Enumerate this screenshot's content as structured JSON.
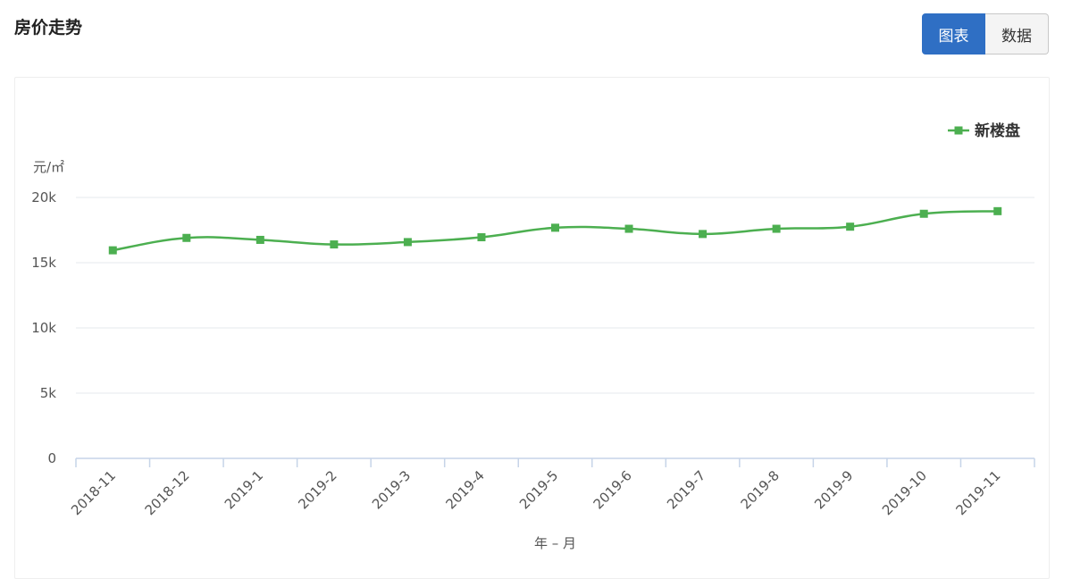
{
  "header": {
    "title": "房价走势",
    "toggle": {
      "chart_label": "图表",
      "data_label": "数据"
    }
  },
  "colors": {
    "series": "#4caf50",
    "accent": "#2f6fc4",
    "grid": "#e6e8ec",
    "axis": "#c6d4e8"
  },
  "chart_data": {
    "type": "line",
    "title": "",
    "xlabel": "年 – 月",
    "ylabel": "元/㎡",
    "ylim": [
      0,
      20000
    ],
    "yticks": [
      0,
      5000,
      10000,
      15000,
      20000
    ],
    "ytick_labels": [
      "0",
      "5k",
      "10k",
      "15k",
      "20k"
    ],
    "categories": [
      "2018-11",
      "2018-12",
      "2019-1",
      "2019-2",
      "2019-3",
      "2019-4",
      "2019-5",
      "2019-6",
      "2019-7",
      "2019-8",
      "2019-9",
      "2019-10",
      "2019-11"
    ],
    "series": [
      {
        "name": "新楼盘",
        "values": [
          15950,
          16900,
          16750,
          16400,
          16580,
          16950,
          17680,
          17600,
          17200,
          17600,
          17760,
          18750,
          18950
        ]
      }
    ],
    "legend": "top-right",
    "grid": true
  }
}
